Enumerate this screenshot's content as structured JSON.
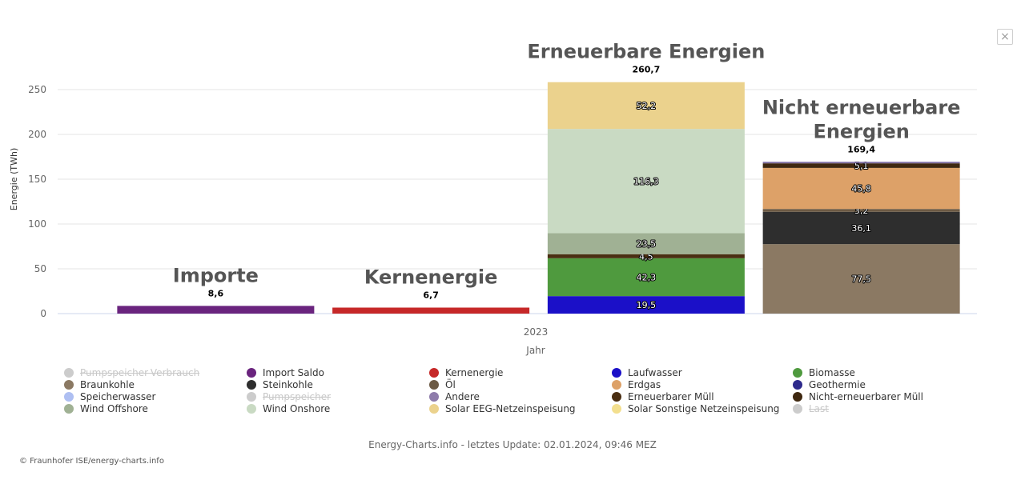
{
  "close_label": "×",
  "credits": "Energy-Charts.info - letztes Update: 02.01.2024, 09:46 MEZ",
  "copyright": "© Fraunhofer ISE/energy-charts.info",
  "chart_data": {
    "type": "bar",
    "stacked": true,
    "xlabel": "Jahr",
    "x_category": "2023",
    "ylabel": "Energie (TWh)",
    "ylim": [
      0,
      250
    ],
    "yticks": [
      0,
      50,
      100,
      150,
      200,
      250
    ],
    "grid": true,
    "legend_position": "bottom",
    "columns": [
      {
        "title": "Importe",
        "total": "8,6",
        "segments": [
          {
            "name": "Import Saldo",
            "value": 8.6,
            "label": "",
            "color": "#6a247e"
          }
        ]
      },
      {
        "title": "Kernenergie",
        "total": "6,7",
        "segments": [
          {
            "name": "Kernenergie",
            "value": 6.7,
            "label": "",
            "color": "#c62828"
          }
        ]
      },
      {
        "title": "Erneuerbare Energien",
        "total": "260,7",
        "segments": [
          {
            "name": "Laufwasser",
            "value": 19.5,
            "label": "19,5",
            "color": "#1b10c8"
          },
          {
            "name": "Biomasse",
            "value": 42.3,
            "label": "42,3",
            "color": "#4f9a3e"
          },
          {
            "name": "Erneuerbarer Müll",
            "value": 4.5,
            "label": "4,5",
            "color": "#4a2e12"
          },
          {
            "name": "Wind Offshore",
            "value": 23.5,
            "label": "23,5",
            "color": "#a0b194"
          },
          {
            "name": "Wind Onshore",
            "value": 116.3,
            "label": "116,3",
            "color": "#c9dac3"
          },
          {
            "name": "Solar EEG-Netzeinspeisung",
            "value": 52.2,
            "label": "52,2",
            "color": "#ebd28d"
          }
        ]
      },
      {
        "title": "Nicht erneuerbare Energien",
        "total": "169,4",
        "segments": [
          {
            "name": "Braunkohle",
            "value": 77.5,
            "label": "77,5",
            "color": "#8b7963"
          },
          {
            "name": "Steinkohle",
            "value": 36.1,
            "label": "36,1",
            "color": "#2e2e2e"
          },
          {
            "name": "Öl",
            "value": 3.2,
            "label": "3,2",
            "color": "#6c5a44"
          },
          {
            "name": "Erdgas",
            "value": 45.8,
            "label": "45,8",
            "color": "#dda168"
          },
          {
            "name": "Nicht-erneuerbarer Müll",
            "value": 5.1,
            "label": "5,1",
            "color": "#3f2810"
          },
          {
            "name": "Andere",
            "value": 1.7,
            "label": "",
            "color": "#7e6fa3"
          }
        ]
      }
    ],
    "legend": [
      {
        "name": "Pumpspeicher-Verbrauch",
        "color": "#cccccc",
        "hidden": true
      },
      {
        "name": "Import Saldo",
        "color": "#6a247e",
        "hidden": false
      },
      {
        "name": "Kernenergie",
        "color": "#c62828",
        "hidden": false
      },
      {
        "name": "Laufwasser",
        "color": "#1b10c8",
        "hidden": false
      },
      {
        "name": "Biomasse",
        "color": "#4f9a3e",
        "hidden": false
      },
      {
        "name": "Braunkohle",
        "color": "#8b7963",
        "hidden": false
      },
      {
        "name": "Steinkohle",
        "color": "#2e2e2e",
        "hidden": false
      },
      {
        "name": "Öl",
        "color": "#6c5a44",
        "hidden": false
      },
      {
        "name": "Erdgas",
        "color": "#dda168",
        "hidden": false
      },
      {
        "name": "Geothermie",
        "color": "#2e2a8c",
        "hidden": false
      },
      {
        "name": "Speicherwasser",
        "color": "#aebff2",
        "hidden": false
      },
      {
        "name": "Pumpspeicher",
        "color": "#cccccc",
        "hidden": true
      },
      {
        "name": "Andere",
        "color": "#8e7cab",
        "hidden": false
      },
      {
        "name": "Erneuerbarer Müll",
        "color": "#4a2e12",
        "hidden": false
      },
      {
        "name": "Nicht-erneuerbarer Müll",
        "color": "#3f2810",
        "hidden": false
      },
      {
        "name": "Wind Offshore",
        "color": "#a0b194",
        "hidden": false
      },
      {
        "name": "Wind Onshore",
        "color": "#c9dac3",
        "hidden": false
      },
      {
        "name": "Solar EEG-Netzeinspeisung",
        "color": "#ebd28d",
        "hidden": false
      },
      {
        "name": "Solar Sonstige Netzeinspeisung",
        "color": "#f3df8e",
        "hidden": false
      },
      {
        "name": "Last",
        "color": "#cccccc",
        "hidden": true
      }
    ]
  }
}
